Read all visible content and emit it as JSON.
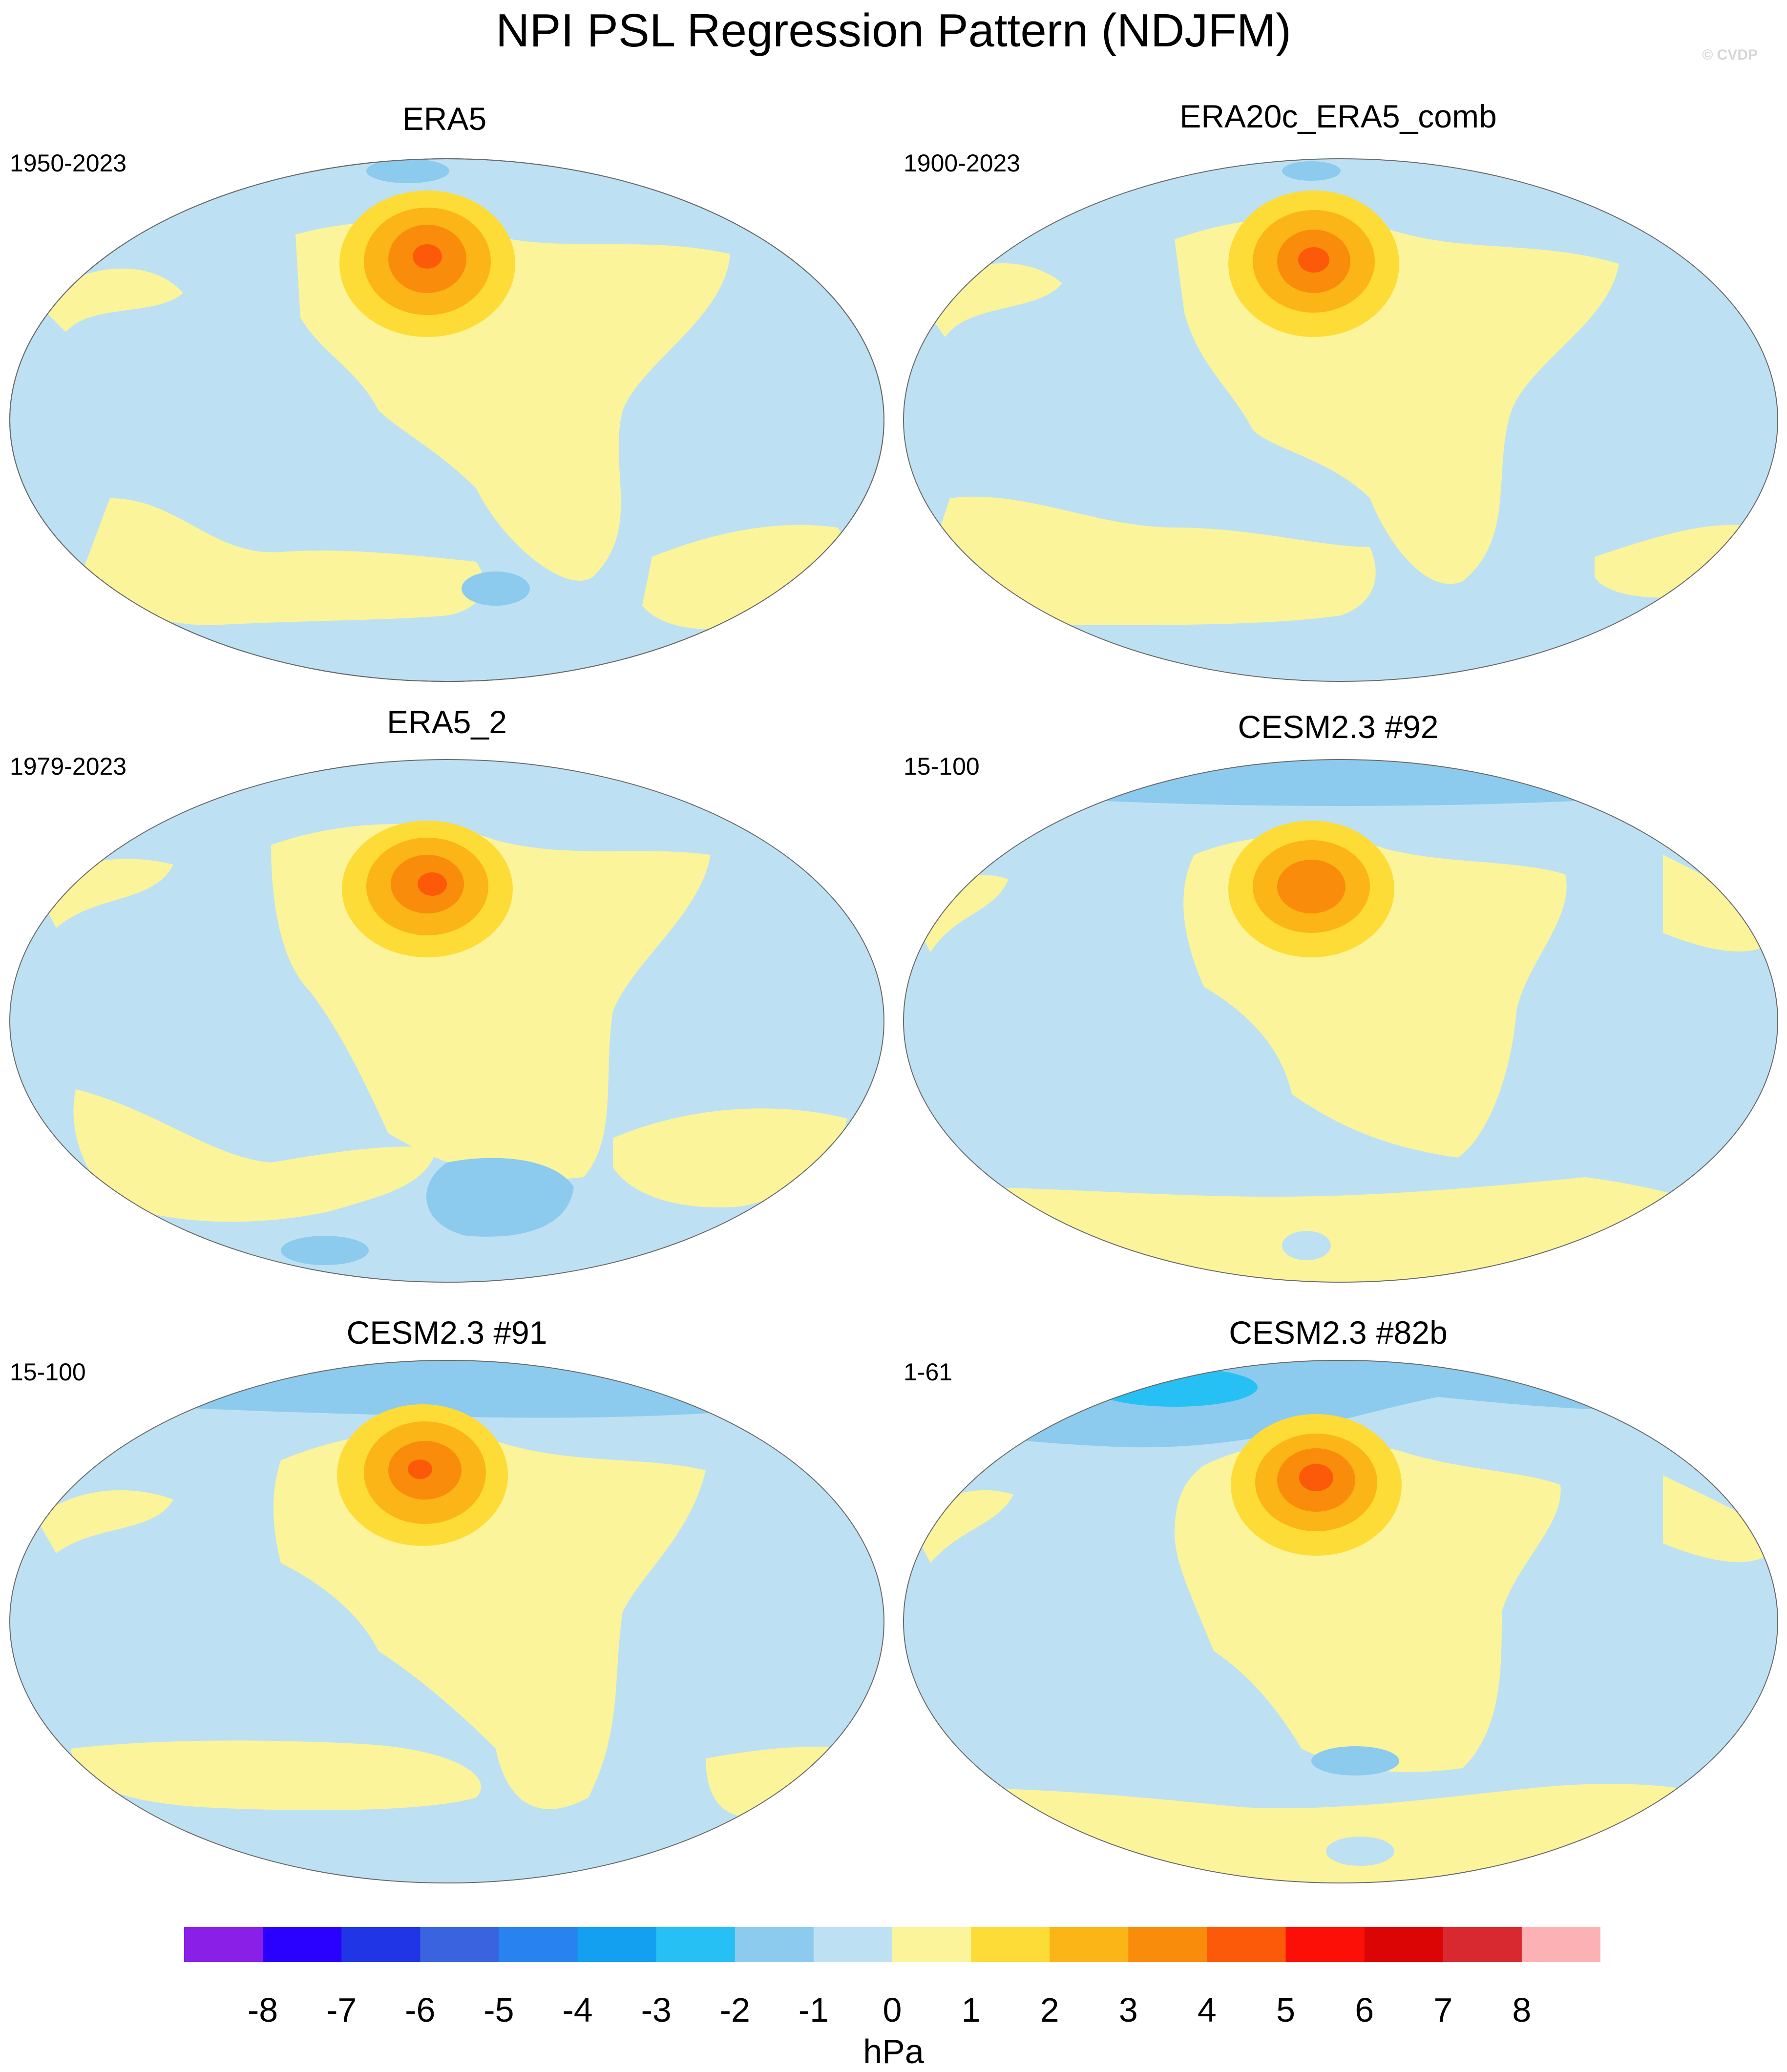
{
  "title": "NPI PSL Regression Pattern (NDJFM)",
  "credit": "© CVDP",
  "panels": [
    {
      "name": "ERA5",
      "period": "1950-2023"
    },
    {
      "name": "ERA20c_ERA5_comb",
      "period": "1900-2023"
    },
    {
      "name": "ERA5_2",
      "period": "1979-2023"
    },
    {
      "name": "CESM2.3 #92",
      "period": "15-100"
    },
    {
      "name": "CESM2.3 #91",
      "period": "15-100"
    },
    {
      "name": "CESM2.3 #82b",
      "period": "1-61"
    }
  ],
  "colorbar": {
    "units": "hPa",
    "labels": [
      "-8",
      "-7",
      "-6",
      "-5",
      "-4",
      "-3",
      "-2",
      "-1",
      "0",
      "1",
      "2",
      "3",
      "4",
      "5",
      "6",
      "7",
      "8"
    ],
    "colors": [
      "#8a1fe8",
      "#2a00ff",
      "#1f35e6",
      "#3a63e0",
      "#2882f0",
      "#13a0f0",
      "#27c0f5",
      "#8ccbee",
      "#bde1f3",
      "#fbf49a",
      "#fddc37",
      "#fbb517",
      "#fa8c0c",
      "#fc5a08",
      "#fc0f06",
      "#db0505",
      "#d82930",
      "#fcb2b5"
    ]
  },
  "map_colors": {
    "neutral_neg": "#bde1f3",
    "neutral_pos": "#fbf49a",
    "pos_1": "#fddc37",
    "pos_2": "#fbb517",
    "pos_3": "#fa8c0c",
    "pos_4": "#fc5a08",
    "neg_1": "#8ccbee",
    "neg_2": "#27c0f5",
    "coast": "#8e8e8e"
  }
}
